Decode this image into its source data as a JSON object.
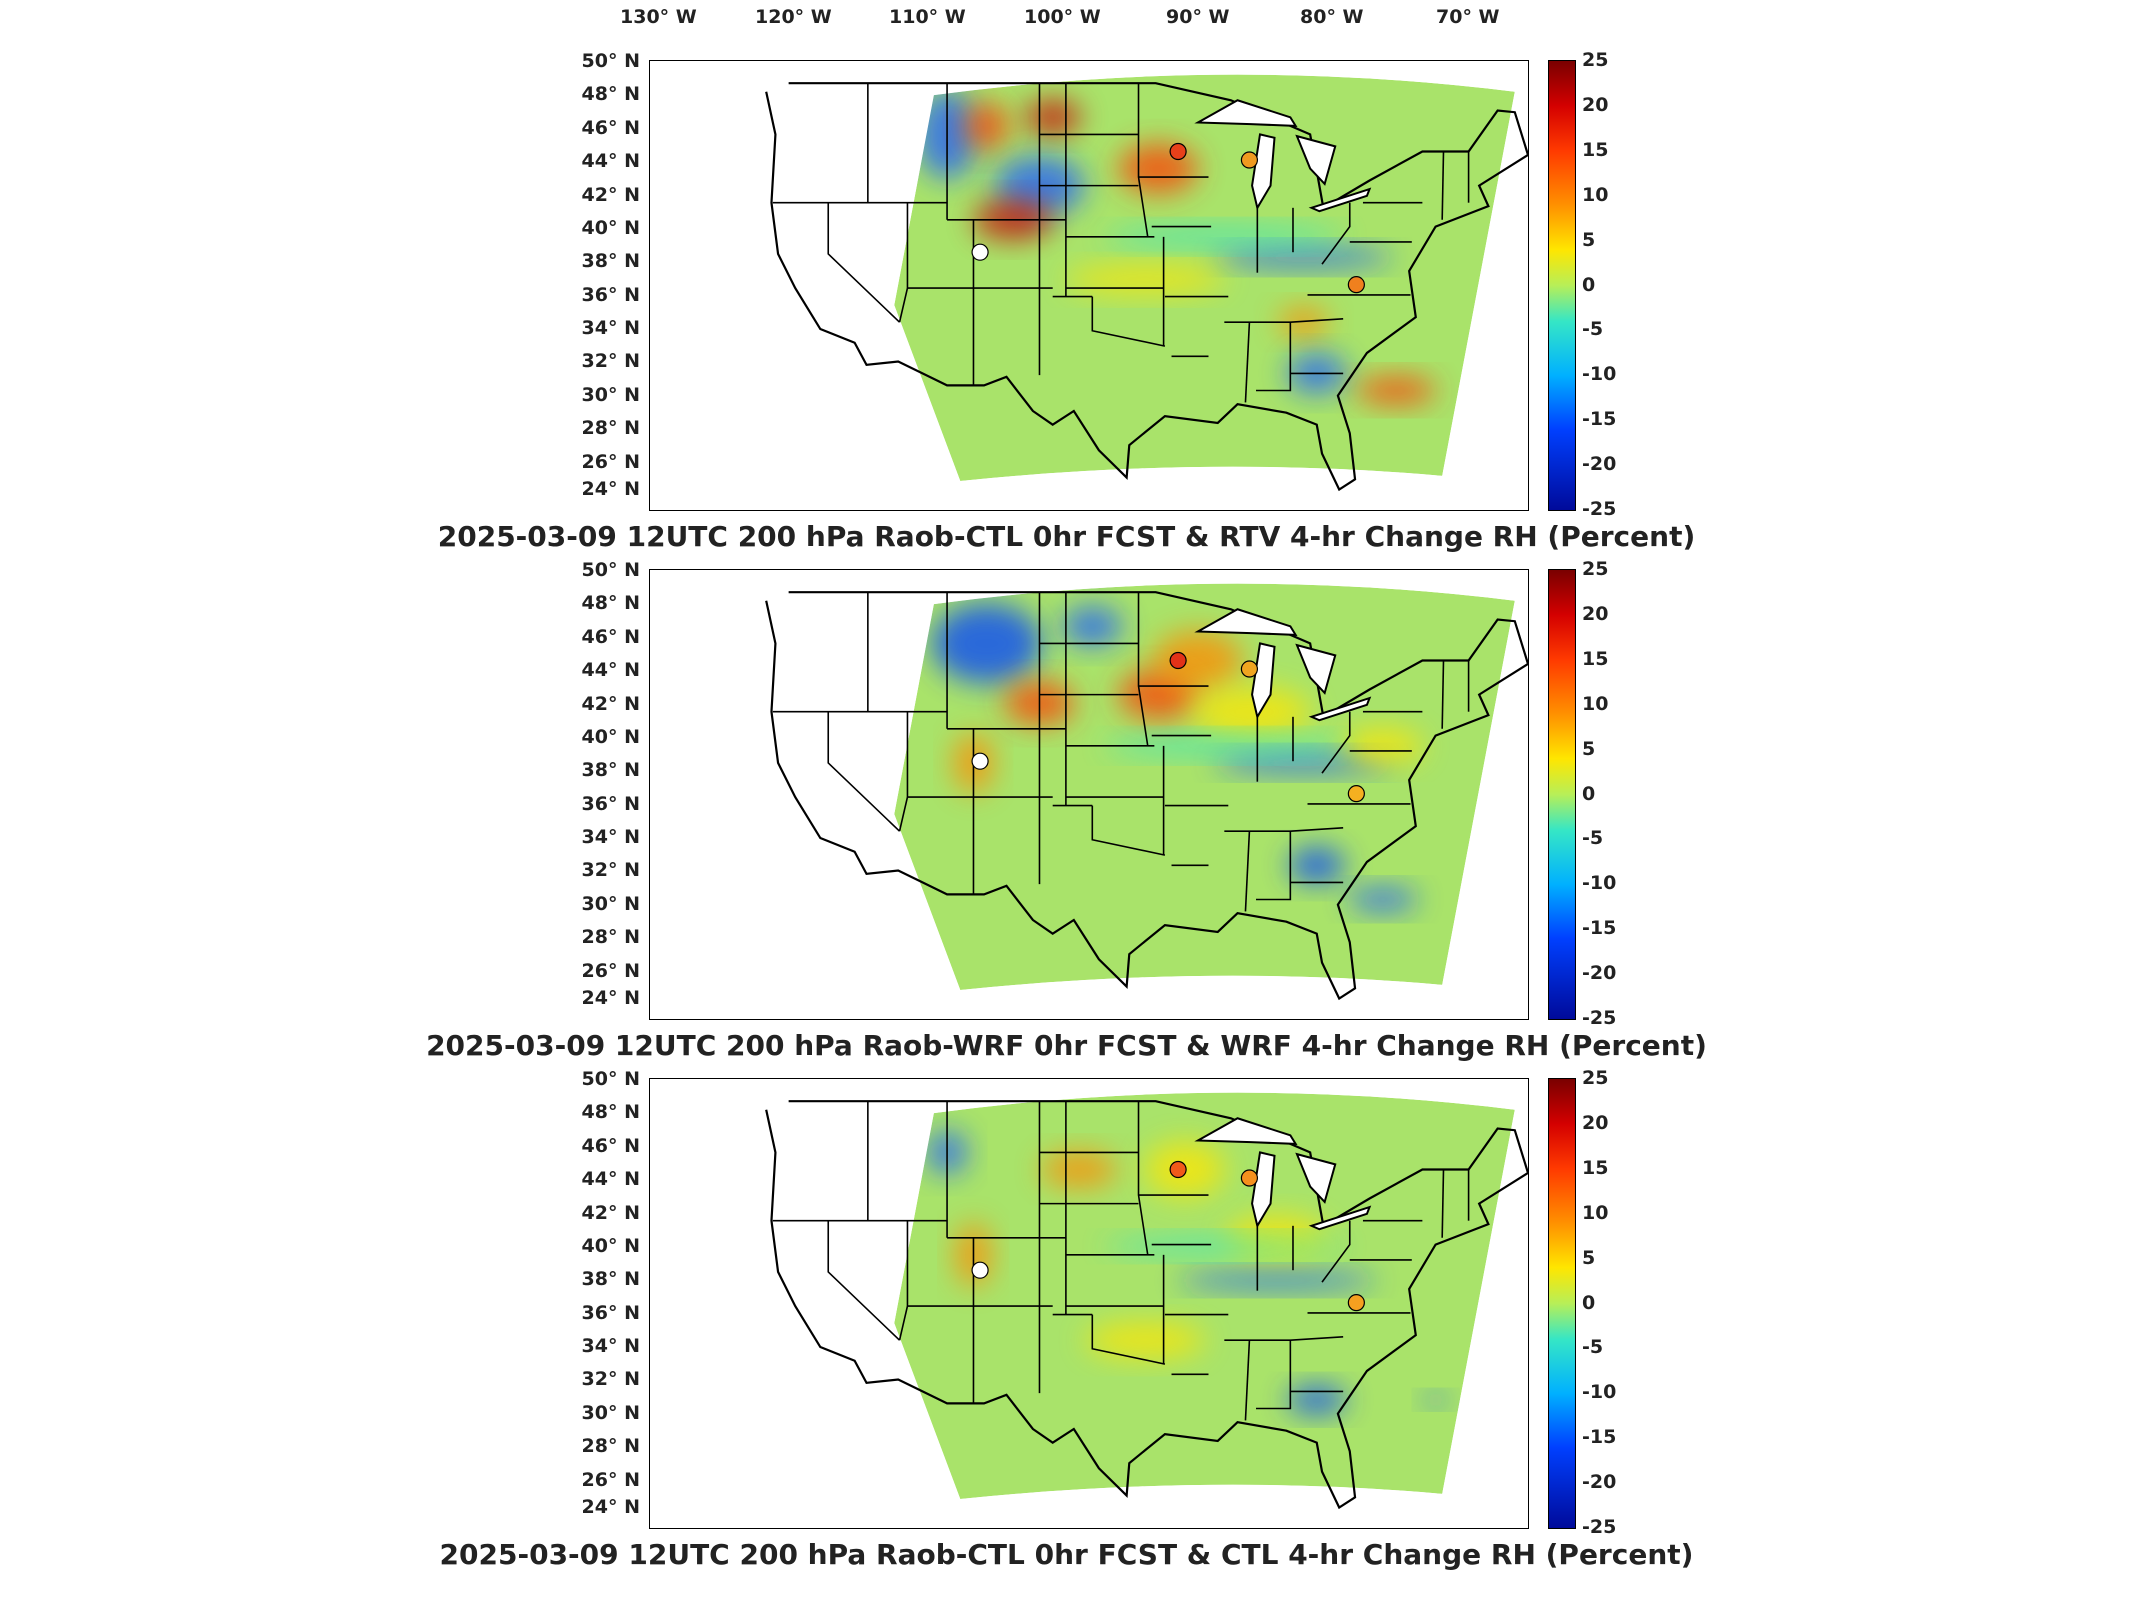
{
  "longitude_labels": [
    "130° W",
    "120° W",
    "110° W",
    "100° W",
    "90° W",
    "80° W",
    "70° W"
  ],
  "latitude_labels": [
    "50° N",
    "48° N",
    "46° N",
    "44° N",
    "42° N",
    "40° N",
    "38° N",
    "36° N",
    "34° N",
    "32° N",
    "30° N",
    "28° N",
    "26° N",
    "24° N"
  ],
  "colorbar_ticks": [
    "25",
    "20",
    "15",
    "10",
    "5",
    "0",
    "-5",
    "-10",
    "-15",
    "-20",
    "-25"
  ],
  "panels": [
    {
      "title": "2025-03-09 12UTC 200 hPa Raob-CTL 0hr FCST & RTV 4-hr Change RH (Percent)"
    },
    {
      "title": "2025-03-09 12UTC 200 hPa Raob-WRF 0hr FCST & WRF 4-hr Change RH (Percent)"
    },
    {
      "title": "2025-03-09 12UTC 200 hPa Raob-CTL 0hr FCST & CTL 4-hr Change RH (Percent)"
    }
  ],
  "colors": {
    "field_base": "#a9e36a",
    "positive_high": "#c80000",
    "positive": "#ff8a00",
    "neutral": "#a9e36a",
    "negative": "#1e5cff",
    "negative_high": "#000a9a",
    "boundary": "#000000"
  },
  "stations": [
    {
      "name": "station-minneapolis",
      "lon": -93.5,
      "lat": 45.0
    },
    {
      "name": "station-green-bay",
      "lon": -88.1,
      "lat": 44.5
    },
    {
      "name": "station-grand-junction",
      "lon": -108.5,
      "lat": 39.1
    },
    {
      "name": "station-roanoke",
      "lon": -80.0,
      "lat": 37.2
    }
  ],
  "station_colors": [
    [
      "#e8401a",
      "#f09a20",
      "#ffffff",
      "#f0801e"
    ],
    [
      "#e23218",
      "#f0a520",
      "#ffffff",
      "#f5b020"
    ],
    [
      "#f05a1a",
      "#f5901e",
      "#ffffff",
      "#f5a020"
    ]
  ]
}
